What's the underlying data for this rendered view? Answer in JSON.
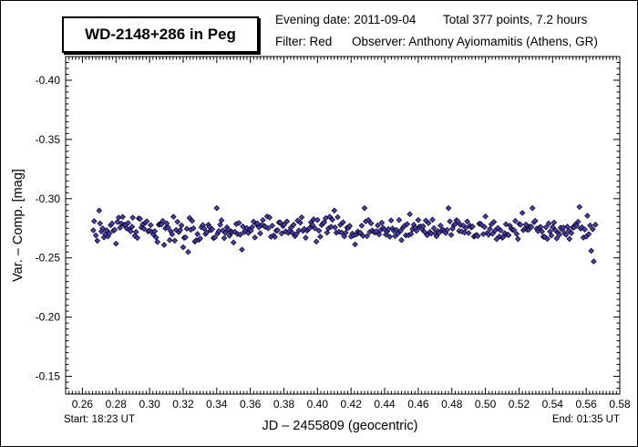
{
  "header": {
    "title": "WD-2148+286 in Peg",
    "evening_date": "Evening date: 2011-09-04",
    "total_points": "Total 377 points, 7.2 hours",
    "filter": "Filter: Red",
    "observer": "Observer: Anthony Ayiomamitis (Athens, GR)"
  },
  "footer": {
    "start": "Start: 18:23 UT",
    "end": "End: 01:35 UT"
  },
  "chart_data": {
    "type": "scatter",
    "xlabel": "JD – 2455809  (geocentric)",
    "ylabel": "Var. – Comp. [mag]",
    "xlim": [
      0.25,
      0.58
    ],
    "ylim": [
      -0.135,
      -0.42
    ],
    "y_inverted": true,
    "x_ticks": [
      0.26,
      0.28,
      0.3,
      0.32,
      0.34,
      0.36,
      0.38,
      0.4,
      0.42,
      0.44,
      0.46,
      0.48,
      0.5,
      0.52,
      0.54,
      0.56,
      0.58
    ],
    "x_tick_labels": [
      "0.26",
      "0.28",
      "0.30",
      "0.32",
      "0.34",
      "0.36",
      "0.38",
      "0.40",
      "0.42",
      "0.44",
      "0.46",
      "0.48",
      "0.50",
      "0.52",
      "0.54",
      "0.56",
      "0.58"
    ],
    "y_ticks": [
      -0.4,
      -0.35,
      -0.3,
      -0.25,
      -0.2,
      -0.15
    ],
    "y_tick_labels": [
      "-0.40",
      "-0.35",
      "-0.30",
      "-0.25",
      "-0.20",
      "-0.15"
    ],
    "grid": false,
    "marker": "diamond",
    "marker_fill": "#4b3cc8",
    "marker_edge": "#000000",
    "series": [
      {
        "x_start": 0.2665,
        "x_end": 0.5655,
        "count": 377,
        "y_mean": -0.274,
        "y_scatter": 0.008,
        "y_min_approx": -0.293,
        "y_max_approx": -0.247,
        "y_sample_points": [
          [
            0.267,
            -0.281
          ],
          [
            0.268,
            -0.269
          ],
          [
            0.27,
            -0.29
          ],
          [
            0.272,
            -0.275
          ],
          [
            0.28,
            -0.262
          ],
          [
            0.29,
            -0.284
          ],
          [
            0.3,
            -0.273
          ],
          [
            0.312,
            -0.265
          ],
          [
            0.32,
            -0.259
          ],
          [
            0.323,
            -0.255
          ],
          [
            0.335,
            -0.278
          ],
          [
            0.34,
            -0.292
          ],
          [
            0.35,
            -0.263
          ],
          [
            0.355,
            -0.257
          ],
          [
            0.37,
            -0.285
          ],
          [
            0.38,
            -0.278
          ],
          [
            0.4,
            -0.282
          ],
          [
            0.41,
            -0.29
          ],
          [
            0.42,
            -0.268
          ],
          [
            0.428,
            -0.292
          ],
          [
            0.44,
            -0.274
          ],
          [
            0.45,
            -0.265
          ],
          [
            0.46,
            -0.282
          ],
          [
            0.478,
            -0.292
          ],
          [
            0.49,
            -0.271
          ],
          [
            0.5,
            -0.285
          ],
          [
            0.51,
            -0.267
          ],
          [
            0.522,
            -0.288
          ],
          [
            0.528,
            -0.292
          ],
          [
            0.54,
            -0.276
          ],
          [
            0.55,
            -0.266
          ],
          [
            0.556,
            -0.293
          ],
          [
            0.56,
            -0.268
          ],
          [
            0.563,
            -0.256
          ],
          [
            0.5645,
            -0.247
          ],
          [
            0.5655,
            -0.278
          ]
        ]
      }
    ]
  }
}
